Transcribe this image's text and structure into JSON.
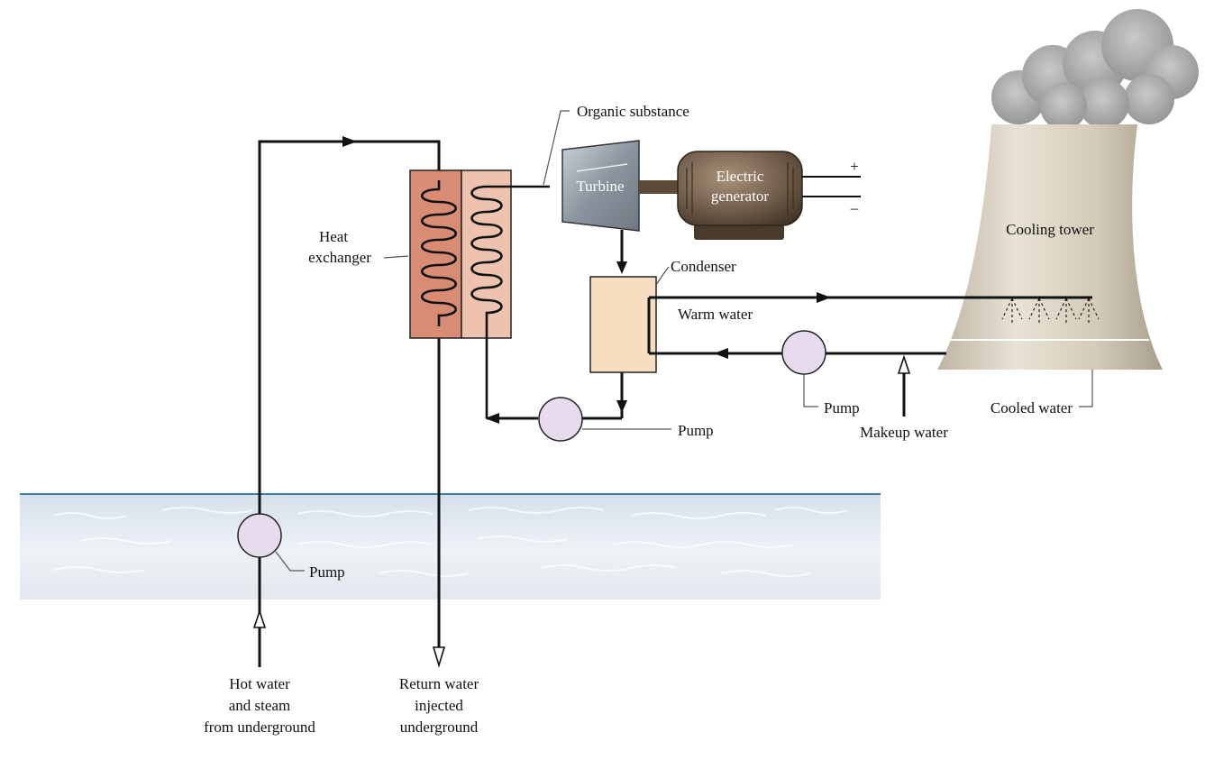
{
  "labels": {
    "organic_substance": "Organic substance",
    "turbine": "Turbine",
    "generator_line1": "Electric",
    "generator_line2": "generator",
    "plus": "+",
    "minus": "–",
    "heat_exchanger_line1": "Heat",
    "heat_exchanger_line2": "exchanger",
    "condenser": "Condenser",
    "warm_water": "Warm water",
    "cooling_tower": "Cooling tower",
    "cooled_water": "Cooled water",
    "makeup_water": "Makeup water",
    "pump_condenser_loop": "Pump",
    "pump_cooling_loop": "Pump",
    "pump_underground": "Pump",
    "hot_water_line1": "Hot water",
    "hot_water_line2": "and steam",
    "hot_water_line3": "from underground",
    "return_water_line1": "Return water",
    "return_water_line2": "injected",
    "return_water_line3": "underground"
  },
  "colors": {
    "heat_exchanger_hot": "#D98C74",
    "heat_exchanger_cool": "#EDC2AE",
    "condenser_fill": "#F7DEC0",
    "pump_fill": "#E6DCEE",
    "turbine_fill": "#9EA7B0",
    "generator_body": "#6E5A48",
    "cooling_tower": "#D8D0C0",
    "steam_cloud": "#9A9A9A",
    "ground_line": "#3E7FA8",
    "ground_fill": "#E4EAF0"
  }
}
